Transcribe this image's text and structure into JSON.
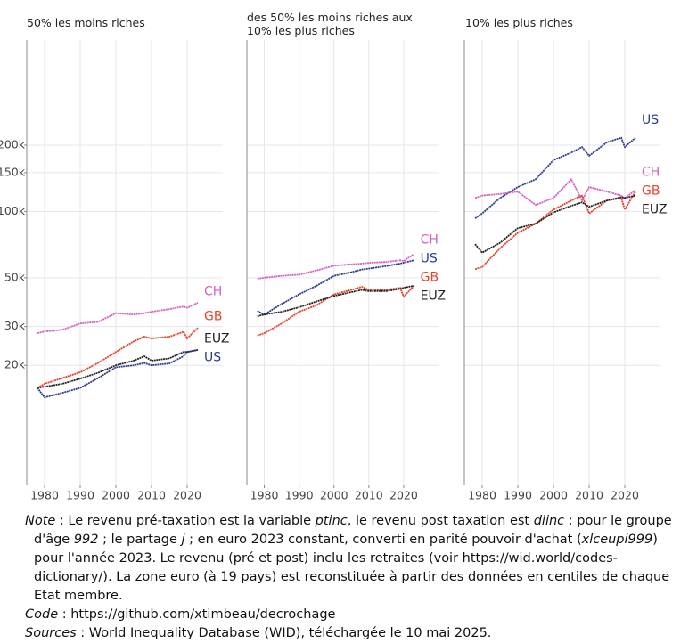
{
  "chart_data": [
    {
      "type": "line",
      "title": "50% les moins riches",
      "x": [
        1978,
        1980,
        1985,
        1990,
        1995,
        2000,
        2005,
        2008,
        2010,
        2015,
        2019,
        2020,
        2023
      ],
      "xlim": [
        1975,
        2030
      ],
      "xticks": [
        1980,
        1990,
        2000,
        2010,
        2020
      ],
      "ylim": [
        5700,
        600000
      ],
      "log": true,
      "grid": true,
      "yticks": [
        {
          "value": 20000,
          "label": "20k"
        },
        {
          "value": 30000,
          "label": "30k"
        },
        {
          "value": 50000,
          "label": "50k"
        },
        {
          "value": 100000,
          "label": "100k"
        },
        {
          "value": 150000,
          "label": "150k"
        },
        {
          "value": 200000,
          "label": "200k"
        }
      ],
      "series": [
        {
          "name": "CH",
          "color": "#d65fc0",
          "values": [
            28000,
            28500,
            29000,
            31000,
            31500,
            34500,
            34000,
            34500,
            35000,
            36000,
            37000,
            36500,
            38500
          ]
        },
        {
          "name": "GB",
          "color": "#e8412a",
          "values": [
            15800,
            16500,
            17500,
            18600,
            20500,
            23000,
            25700,
            27000,
            26500,
            27000,
            28400,
            26500,
            29600
          ]
        },
        {
          "name": "EUZ",
          "color": "#222222",
          "values": [
            15800,
            16000,
            16500,
            17400,
            18500,
            20000,
            21000,
            22000,
            21000,
            21500,
            23000,
            23000,
            23500
          ]
        },
        {
          "name": "US",
          "color": "#2c3b8f",
          "values": [
            15800,
            14300,
            15000,
            15800,
            17500,
            19600,
            20000,
            20500,
            20000,
            20400,
            22000,
            23000,
            23500
          ]
        }
      ]
    },
    {
      "type": "line",
      "title": "des 50% les moins riches aux 10% les plus riches",
      "x": [
        1978,
        1980,
        1985,
        1990,
        1995,
        2000,
        2005,
        2008,
        2010,
        2015,
        2019,
        2020,
        2023
      ],
      "xlim": [
        1975,
        2030
      ],
      "xticks": [
        1980,
        1990,
        2000,
        2010,
        2020
      ],
      "ylim": [
        5700,
        600000
      ],
      "log": true,
      "grid": true,
      "series": [
        {
          "name": "CH",
          "color": "#d65fc0",
          "values": [
            49400,
            50000,
            51000,
            51600,
            54000,
            56700,
            57500,
            58000,
            58400,
            59000,
            60000,
            59500,
            64000
          ]
        },
        {
          "name": "US",
          "color": "#2c3b8f",
          "values": [
            35300,
            34000,
            38000,
            42000,
            46000,
            51000,
            53000,
            54500,
            55000,
            56500,
            58000,
            58500,
            60000
          ]
        },
        {
          "name": "GB",
          "color": "#e8412a",
          "values": [
            27300,
            28000,
            31000,
            35000,
            37500,
            42000,
            44000,
            45500,
            44000,
            44000,
            45000,
            41000,
            46000
          ]
        },
        {
          "name": "EUZ",
          "color": "#222222",
          "values": [
            33400,
            34000,
            35000,
            36700,
            39000,
            41300,
            43000,
            44000,
            43500,
            43500,
            44500,
            45000,
            46000
          ]
        }
      ]
    },
    {
      "type": "line",
      "title": "10% les plus riches",
      "x": [
        1978,
        1980,
        1985,
        1990,
        1995,
        2000,
        2005,
        2008,
        2010,
        2015,
        2019,
        2020,
        2023
      ],
      "xlim": [
        1975,
        2030
      ],
      "xticks": [
        1980,
        1990,
        2000,
        2010,
        2020
      ],
      "ylim": [
        5700,
        600000
      ],
      "log": true,
      "grid": true,
      "series": [
        {
          "name": "US",
          "color": "#2c3b8f",
          "values": [
            93000,
            98000,
            115000,
            129000,
            140000,
            171000,
            185000,
            196000,
            179000,
            206000,
            216000,
            196000,
            216000
          ]
        },
        {
          "name": "CH",
          "color": "#d65fc0",
          "values": [
            115000,
            118000,
            120000,
            123000,
            107000,
            115000,
            140000,
            112000,
            129000,
            123000,
            118000,
            115000,
            125000
          ]
        },
        {
          "name": "GB",
          "color": "#e8412a",
          "values": [
            54700,
            56000,
            68000,
            80000,
            88000,
            102000,
            112000,
            118000,
            98000,
            112000,
            115000,
            102000,
            123000
          ]
        },
        {
          "name": "EUZ",
          "color": "#222222",
          "values": [
            71000,
            65000,
            72000,
            84000,
            88000,
            99000,
            106000,
            110000,
            105000,
            112000,
            116000,
            115000,
            118000
          ]
        }
      ]
    }
  ],
  "notes": {
    "note": [
      "Note",
      " : Le revenu pré-taxation est la variable ",
      "ptinc",
      ", le revenu post taxation est ",
      "diinc",
      " ; pour le groupe d'âge ",
      "992",
      " ; le partage ",
      "j",
      " ; en euro 2023 constant, converti en parité pouvoir d'achat (",
      "xlceupi999",
      ") pour l'année 2023. Le revenu (pré et post) inclu les retraites (voir https://wid.world/codes-dictionary/). La zone euro (à 19 pays) est reconstituée à partir des données en centiles de chaque Etat membre."
    ],
    "code": [
      "Code",
      " : https://github.com/xtimbeau/decrochage"
    ],
    "sources": [
      "Sources",
      " : World Inequality Database (WID), téléchargée le 10 mai 2025."
    ]
  }
}
